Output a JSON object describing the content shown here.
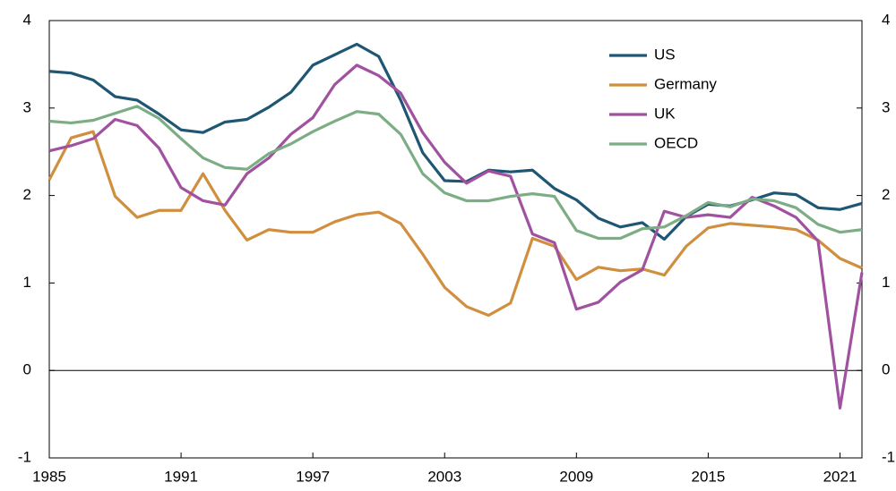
{
  "chart_data": {
    "type": "line",
    "x": [
      1985,
      1986,
      1987,
      1988,
      1989,
      1990,
      1991,
      1992,
      1993,
      1994,
      1995,
      1996,
      1997,
      1998,
      1999,
      2000,
      2001,
      2002,
      2003,
      2004,
      2005,
      2006,
      2007,
      2008,
      2009,
      2010,
      2011,
      2012,
      2013,
      2014,
      2015,
      2016,
      2017,
      2018,
      2019,
      2020,
      2021,
      2022
    ],
    "series": [
      {
        "name": "US",
        "color": "#1f5673",
        "values": [
          3.42,
          3.4,
          3.32,
          3.13,
          3.09,
          2.93,
          2.75,
          2.72,
          2.84,
          2.87,
          3.01,
          3.18,
          3.49,
          3.61,
          3.73,
          3.59,
          3.09,
          2.49,
          2.17,
          2.16,
          2.29,
          2.27,
          2.29,
          2.08,
          1.95,
          1.74,
          1.64,
          1.69,
          1.5,
          1.76,
          1.9,
          1.88,
          1.95,
          2.03,
          2.01,
          1.86,
          1.84,
          1.91
        ]
      },
      {
        "name": "Germany",
        "color": "#d08f3f",
        "values": [
          2.18,
          2.66,
          2.73,
          1.99,
          1.75,
          1.83,
          1.83,
          2.25,
          1.83,
          1.49,
          1.61,
          1.58,
          1.58,
          1.7,
          1.78,
          1.81,
          1.68,
          1.33,
          0.95,
          0.73,
          0.63,
          0.77,
          1.51,
          1.42,
          1.04,
          1.18,
          1.14,
          1.16,
          1.09,
          1.42,
          1.63,
          1.68,
          1.66,
          1.64,
          1.61,
          1.49,
          1.28,
          1.17
        ]
      },
      {
        "name": "UK",
        "color": "#a052a0",
        "values": [
          2.51,
          2.57,
          2.65,
          2.87,
          2.8,
          2.54,
          2.09,
          1.94,
          1.89,
          2.25,
          2.43,
          2.7,
          2.89,
          3.27,
          3.49,
          3.37,
          3.17,
          2.72,
          2.38,
          2.14,
          2.28,
          2.22,
          1.56,
          1.46,
          0.7,
          0.78,
          1.01,
          1.15,
          1.82,
          1.75,
          1.78,
          1.75,
          1.98,
          1.88,
          1.75,
          1.48,
          -0.43,
          1.12
        ]
      },
      {
        "name": "OECD",
        "color": "#7cad84",
        "values": [
          2.85,
          2.83,
          2.86,
          2.94,
          3.02,
          2.88,
          2.65,
          2.43,
          2.32,
          2.3,
          2.48,
          2.59,
          2.73,
          2.85,
          2.96,
          2.93,
          2.7,
          2.25,
          2.03,
          1.94,
          1.94,
          1.99,
          2.02,
          1.99,
          1.6,
          1.51,
          1.51,
          1.62,
          1.64,
          1.77,
          1.92,
          1.87,
          1.96,
          1.94,
          1.86,
          1.67,
          1.58,
          1.61
        ]
      }
    ],
    "xlim": [
      1985,
      2022
    ],
    "xticks": [
      1985,
      1991,
      1997,
      2003,
      2009,
      2015,
      2021
    ],
    "ylim": [
      -1,
      4
    ],
    "yticks": [
      -1,
      0,
      1,
      2,
      3,
      4
    ],
    "y2lim": [
      -1,
      4
    ],
    "y2ticks": [
      -1,
      0,
      1,
      2,
      3,
      4
    ],
    "legend": "top-right"
  }
}
